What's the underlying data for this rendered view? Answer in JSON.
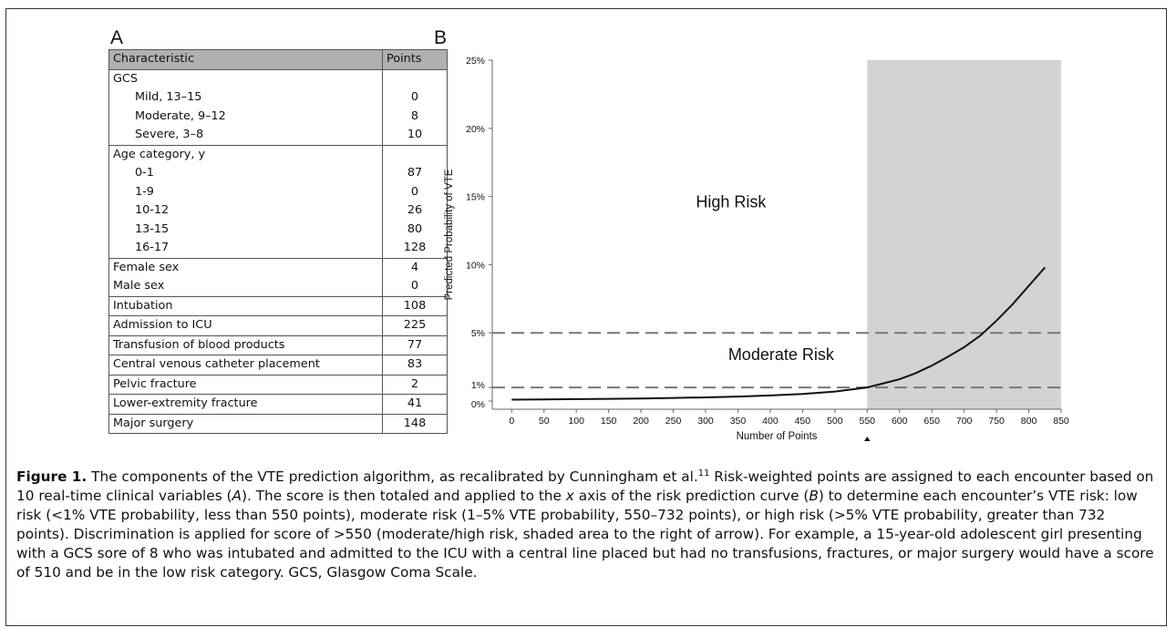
{
  "panel_a": {
    "label": "A",
    "headers": [
      "Characteristic",
      "Points"
    ],
    "rows": [
      {
        "characteristic": "GCS",
        "points": "",
        "indent": false,
        "section_start": true
      },
      {
        "characteristic": "Mild, 13–15",
        "points": "0",
        "indent": true,
        "section_start": false
      },
      {
        "characteristic": "Moderate, 9–12",
        "points": "8",
        "indent": true,
        "section_start": false
      },
      {
        "characteristic": "Severe, 3–8",
        "points": "10",
        "indent": true,
        "section_start": false
      },
      {
        "characteristic": "Age category, y",
        "points": "",
        "indent": false,
        "section_start": true
      },
      {
        "characteristic": "0-1",
        "points": "87",
        "indent": true,
        "section_start": false
      },
      {
        "characteristic": "1-9",
        "points": "0",
        "indent": true,
        "section_start": false
      },
      {
        "characteristic": "10-12",
        "points": "26",
        "indent": true,
        "section_start": false
      },
      {
        "characteristic": "13-15",
        "points": "80",
        "indent": true,
        "section_start": false
      },
      {
        "characteristic": "16-17",
        "points": "128",
        "indent": true,
        "section_start": false
      },
      {
        "characteristic": "Female sex",
        "points": "4",
        "indent": false,
        "section_start": true
      },
      {
        "characteristic": "Male sex",
        "points": "0",
        "indent": false,
        "section_start": false
      },
      {
        "characteristic": "Intubation",
        "points": "108",
        "indent": false,
        "section_start": true
      },
      {
        "characteristic": "Admission to ICU",
        "points": "225",
        "indent": false,
        "section_start": true
      },
      {
        "characteristic": "Transfusion of blood products",
        "points": "77",
        "indent": false,
        "section_start": true
      },
      {
        "characteristic": "Central venous catheter placement",
        "points": "83",
        "indent": false,
        "section_start": true
      },
      {
        "characteristic": "Pelvic fracture",
        "points": "2",
        "indent": false,
        "section_start": true
      },
      {
        "characteristic": "Lower-extremity fracture",
        "points": "41",
        "indent": false,
        "section_start": true
      },
      {
        "characteristic": "Major surgery",
        "points": "148",
        "indent": false,
        "section_start": true
      }
    ]
  },
  "panel_b": {
    "label": "B"
  },
  "chart_data": {
    "type": "line",
    "title": "",
    "xlabel": "Number of Points",
    "ylabel": "Predicted Probability of VTE",
    "xlim": [
      -30,
      850
    ],
    "ylim": [
      -0.6,
      25
    ],
    "x_ticks": [
      0,
      50,
      100,
      150,
      200,
      250,
      300,
      350,
      400,
      450,
      500,
      550,
      600,
      650,
      700,
      750,
      800,
      850
    ],
    "x_tick_labels": [
      "0",
      "50",
      "100",
      "150",
      "200",
      "250",
      "300",
      "350",
      "400",
      "450",
      "500",
      "550",
      "600",
      "650",
      "700",
      "750",
      "800",
      "850"
    ],
    "y_ticks": [
      0,
      1,
      5,
      10,
      15,
      20,
      25
    ],
    "y_tick_labels": [
      "0%",
      "1%",
      "5%",
      "10%",
      "15%",
      "20%",
      "25%"
    ],
    "series": [
      {
        "name": "Predicted Probability of VTE",
        "x": [
          0,
          50,
          100,
          150,
          200,
          250,
          300,
          350,
          400,
          450,
          500,
          550,
          575,
          600,
          625,
          650,
          675,
          700,
          725,
          750,
          775,
          800,
          825
        ],
        "values": [
          0.1,
          0.12,
          0.14,
          0.16,
          0.19,
          0.23,
          0.27,
          0.33,
          0.41,
          0.52,
          0.7,
          1.0,
          1.3,
          1.6,
          2.05,
          2.6,
          3.25,
          3.95,
          4.8,
          5.9,
          7.1,
          8.45,
          9.8
        ]
      }
    ],
    "reference_lines": [
      {
        "axis": "y",
        "value": 5,
        "style": "dashed"
      },
      {
        "axis": "y",
        "value": 1,
        "style": "dashed"
      }
    ],
    "shaded_region": {
      "x_from": 550,
      "x_to": 850
    },
    "annotations": [
      {
        "text": "High Risk",
        "x": 285,
        "y": 14.2
      },
      {
        "text": "Moderate Risk",
        "x": 335,
        "y": 3.0
      }
    ],
    "arrow_marker_x": 550,
    "grid": false
  },
  "caption": {
    "figure_label": "Figure 1.",
    "text_before_sup": " The components of the VTE prediction algorithm, as recalibrated by Cunningham et al.",
    "superscript": "11",
    "text_after_sup": " Risk-weighted points are assigned to each encounter based on 10 real-time clinical variables (",
    "ref_a": "A",
    "text_mid": "). The score is then totaled and applied to the ",
    "x_italic": "x",
    "text_mid2": " axis of the risk prediction curve (",
    "ref_b": "B",
    "text_end": ") to determine each encounter’s VTE risk: low risk (<1% VTE probability, less than 550 points), moderate risk (1–5% VTE probability, 550–732 points), or high risk (>5% VTE probability, greater than 732 points). Discrimination is applied for score of >550 (moderate/high risk, shaded area to the right of arrow). For example, a 15-year-old adolescent girl presenting with a GCS sore of 8 who was intubated and admitted to the ICU with a central line placed but had no transfusions, fractures, or major surgery would have a score of 510 and be in the low risk category. GCS, Glasgow Coma Scale."
  }
}
